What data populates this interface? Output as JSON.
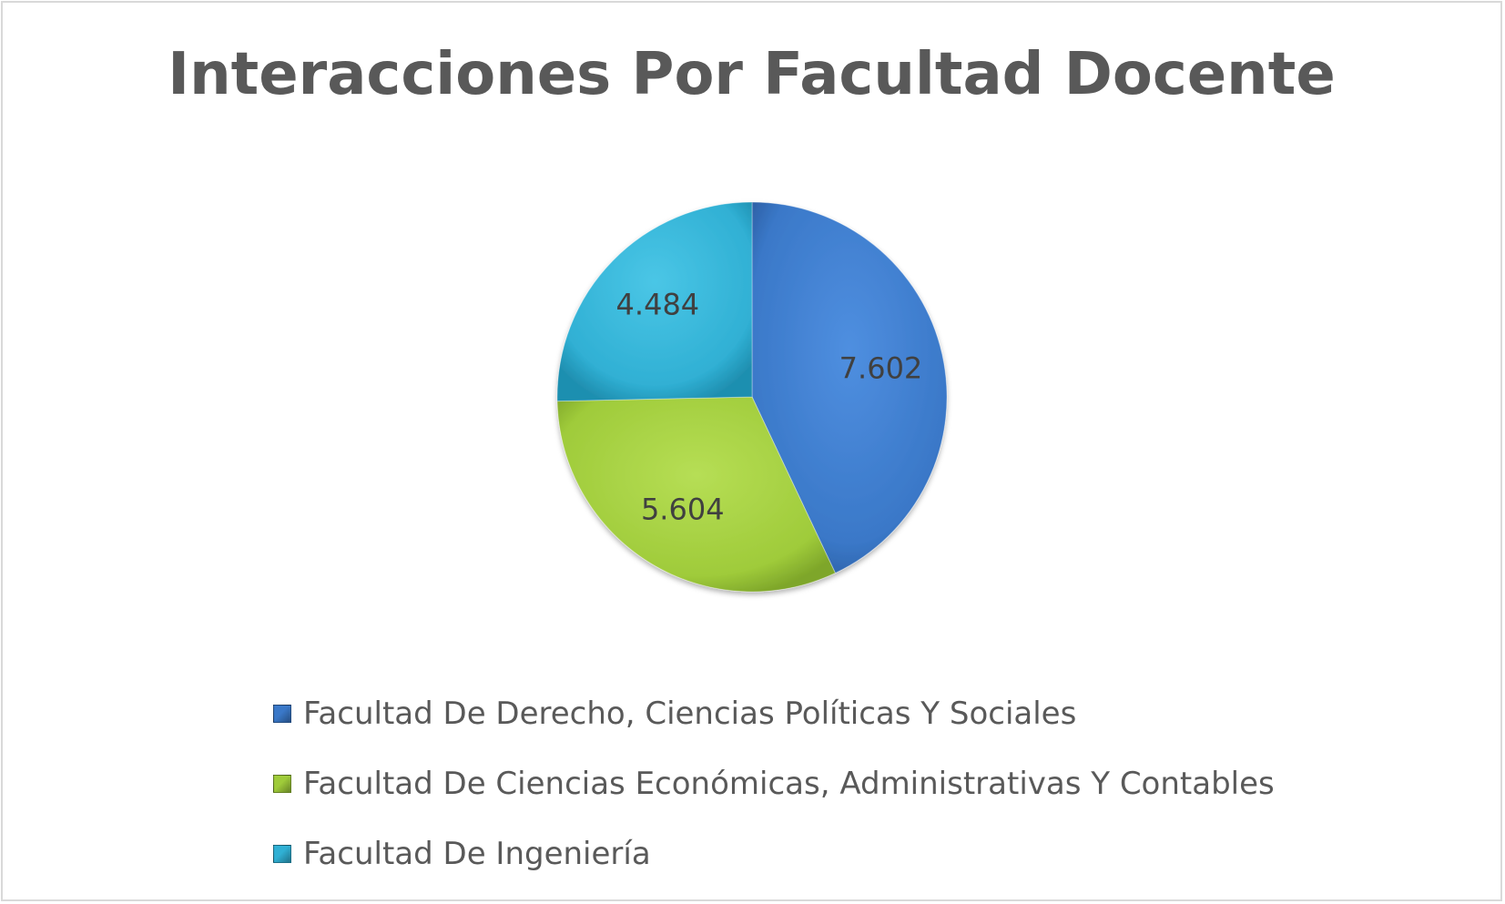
{
  "chart_data": {
    "type": "pie",
    "title": "Interacciones Por Facultad Docente",
    "categories": [
      "Facultad De Derecho, Ciencias Políticas Y Sociales",
      "Facultad De Ciencias Económicas, Administrativas Y Contables",
      "Facultad De Ingeniería"
    ],
    "values": [
      7602,
      5604,
      4484
    ],
    "data_labels": [
      "7.602",
      "5.604",
      "4.484"
    ],
    "colors": [
      "#3a78c8",
      "#9fcb3a",
      "#30b0d4"
    ],
    "legend_position": "bottom",
    "start_angle": "12 o'clock",
    "direction": "clockwise"
  }
}
